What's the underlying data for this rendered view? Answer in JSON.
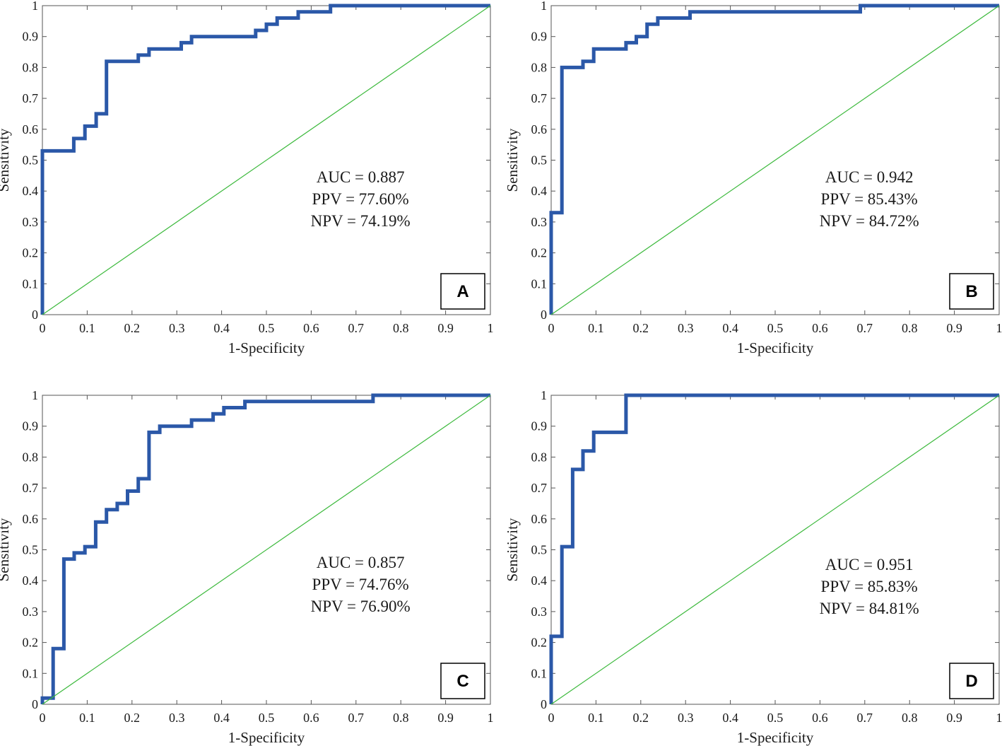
{
  "colors": {
    "roc": "#2b58a8",
    "reference": "#3cb93c",
    "axis": "#555555",
    "text": "#1a1a1a"
  },
  "chart_data": [
    {
      "type": "line",
      "panel_label": "A",
      "xlabel": "1-Specificity",
      "ylabel": "Sensitivity",
      "xlim": [
        0,
        1
      ],
      "ylim": [
        0,
        1
      ],
      "xticks": [
        "0",
        "0.1",
        "0.2",
        "0.3",
        "0.4",
        "0.5",
        "0.6",
        "0.7",
        "0.8",
        "0.9",
        "1"
      ],
      "yticks": [
        "0",
        "0.1",
        "0.2",
        "0.3",
        "0.4",
        "0.5",
        "0.6",
        "0.7",
        "0.8",
        "0.9",
        "1"
      ],
      "annotations": [
        "AUC = 0.887",
        "PPV = 77.60%",
        "NPV = 74.19%"
      ],
      "series": [
        {
          "name": "ROC",
          "x": [
            0,
            0,
            0.07,
            0.07,
            0.095,
            0.095,
            0.12,
            0.12,
            0.143,
            0.143,
            0.214,
            0.214,
            0.238,
            0.238,
            0.31,
            0.31,
            0.333,
            0.333,
            0.476,
            0.476,
            0.5,
            0.5,
            0.524,
            0.524,
            0.571,
            0.571,
            0.643,
            0.643,
            1
          ],
          "y": [
            0,
            0.53,
            0.53,
            0.57,
            0.57,
            0.61,
            0.61,
            0.65,
            0.65,
            0.82,
            0.82,
            0.84,
            0.84,
            0.86,
            0.86,
            0.88,
            0.88,
            0.9,
            0.9,
            0.92,
            0.92,
            0.94,
            0.94,
            0.96,
            0.96,
            0.98,
            0.98,
            1,
            1
          ]
        },
        {
          "name": "Reference",
          "x": [
            0,
            1
          ],
          "y": [
            0,
            1
          ]
        }
      ]
    },
    {
      "type": "line",
      "panel_label": "B",
      "xlabel": "1-Specificity",
      "ylabel": "Sensitivity",
      "xlim": [
        0,
        1
      ],
      "ylim": [
        0,
        1
      ],
      "xticks": [
        "0",
        "0.1",
        "0.2",
        "0.3",
        "0.4",
        "0.5",
        "0.6",
        "0.7",
        "0.8",
        "0.9",
        "1"
      ],
      "yticks": [
        "0",
        "0.1",
        "0.2",
        "0.3",
        "0.4",
        "0.5",
        "0.6",
        "0.7",
        "0.8",
        "0.9",
        "1"
      ],
      "annotations": [
        "AUC = 0.942",
        "PPV = 85.43%",
        "NPV = 84.72%"
      ],
      "series": [
        {
          "name": "ROC",
          "x": [
            0,
            0,
            0.024,
            0.024,
            0.071,
            0.071,
            0.095,
            0.095,
            0.167,
            0.167,
            0.19,
            0.19,
            0.214,
            0.214,
            0.238,
            0.238,
            0.31,
            0.31,
            0.69,
            0.69,
            1
          ],
          "y": [
            0,
            0.33,
            0.33,
            0.8,
            0.8,
            0.82,
            0.82,
            0.86,
            0.86,
            0.88,
            0.88,
            0.9,
            0.9,
            0.94,
            0.94,
            0.96,
            0.96,
            0.98,
            0.98,
            1,
            1
          ]
        },
        {
          "name": "Reference",
          "x": [
            0,
            1
          ],
          "y": [
            0,
            1
          ]
        }
      ]
    },
    {
      "type": "line",
      "panel_label": "C",
      "xlabel": "1-Specificity",
      "ylabel": "Sensitivity",
      "xlim": [
        0,
        1
      ],
      "ylim": [
        0,
        1
      ],
      "xticks": [
        "0",
        "0.1",
        "0.2",
        "0.3",
        "0.4",
        "0.5",
        "0.6",
        "0.7",
        "0.8",
        "0.9",
        "1"
      ],
      "yticks": [
        "0",
        "0.1",
        "0.2",
        "0.3",
        "0.4",
        "0.5",
        "0.6",
        "0.7",
        "0.8",
        "0.9",
        "1"
      ],
      "annotations": [
        "AUC = 0.857",
        "PPV = 74.76%",
        "NPV = 76.90%"
      ],
      "series": [
        {
          "name": "ROC",
          "x": [
            0,
            0,
            0.024,
            0.024,
            0.048,
            0.048,
            0.071,
            0.071,
            0.095,
            0.095,
            0.119,
            0.119,
            0.143,
            0.143,
            0.167,
            0.167,
            0.19,
            0.19,
            0.214,
            0.214,
            0.238,
            0.238,
            0.262,
            0.262,
            0.333,
            0.333,
            0.381,
            0.381,
            0.405,
            0.405,
            0.452,
            0.452,
            0.738,
            0.738,
            1
          ],
          "y": [
            0,
            0.02,
            0.02,
            0.18,
            0.18,
            0.47,
            0.47,
            0.49,
            0.49,
            0.51,
            0.51,
            0.59,
            0.59,
            0.63,
            0.63,
            0.65,
            0.65,
            0.69,
            0.69,
            0.73,
            0.73,
            0.88,
            0.88,
            0.9,
            0.9,
            0.92,
            0.92,
            0.94,
            0.94,
            0.96,
            0.96,
            0.98,
            0.98,
            1,
            1
          ]
        },
        {
          "name": "Reference",
          "x": [
            0,
            1
          ],
          "y": [
            0,
            1
          ]
        }
      ]
    },
    {
      "type": "line",
      "panel_label": "D",
      "xlabel": "1-Specificity",
      "ylabel": "Sensitivity",
      "xlim": [
        0,
        1
      ],
      "ylim": [
        0,
        1
      ],
      "xticks": [
        "0",
        "0.1",
        "0.2",
        "0.3",
        "0.4",
        "0.5",
        "0.6",
        "0.7",
        "0.8",
        "0.9",
        "1"
      ],
      "yticks": [
        "0",
        "0.1",
        "0.2",
        "0.3",
        "0.4",
        "0.5",
        "0.6",
        "0.7",
        "0.8",
        "0.9",
        "1"
      ],
      "annotations": [
        "AUC = 0.951",
        "PPV = 85.83%",
        "NPV = 84.81%"
      ],
      "series": [
        {
          "name": "ROC",
          "x": [
            0,
            0,
            0.024,
            0.024,
            0.048,
            0.048,
            0.071,
            0.071,
            0.095,
            0.095,
            0.167,
            0.167,
            1
          ],
          "y": [
            0,
            0.22,
            0.22,
            0.51,
            0.51,
            0.76,
            0.76,
            0.82,
            0.82,
            0.88,
            0.88,
            1,
            1
          ]
        },
        {
          "name": "Reference",
          "x": [
            0,
            1
          ],
          "y": [
            0,
            1
          ]
        }
      ]
    }
  ]
}
